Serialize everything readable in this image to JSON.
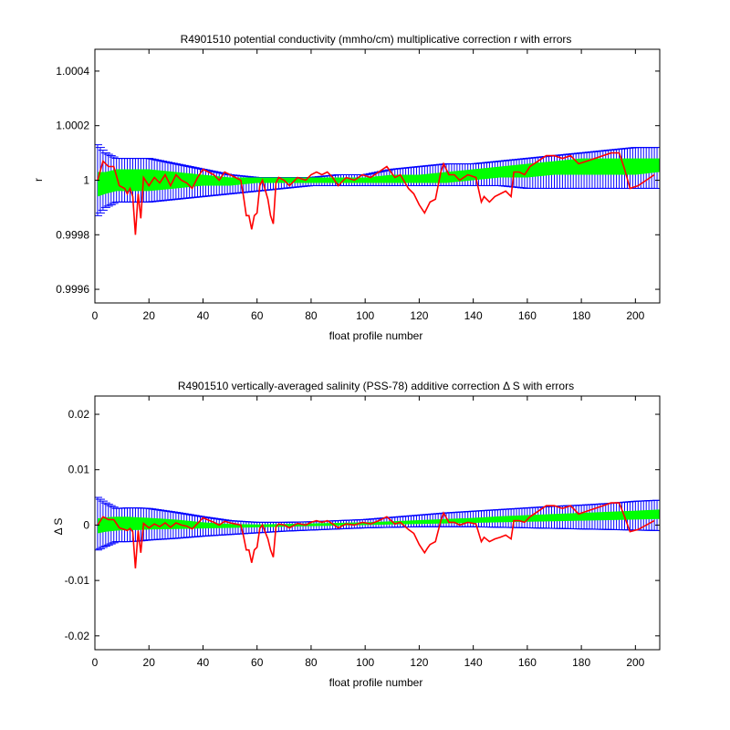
{
  "colors": {
    "error_bars": "#0000ff",
    "fill_band": "#00ff00",
    "correction_line": "#ff0000",
    "axes": "#000000"
  },
  "chart_data": [
    {
      "type": "line",
      "title": "R4901510 potential conductivity (mmho/cm) multiplicative correction r with errors",
      "xlabel": "float profile number",
      "ylabel": "r",
      "xlim": [
        0,
        209
      ],
      "ylim": [
        0.99955,
        1.00048
      ],
      "xticks": [
        0,
        20,
        40,
        60,
        80,
        100,
        120,
        140,
        160,
        180,
        200
      ],
      "yticks": [
        0.9996,
        0.9998,
        1,
        1.0002,
        1.0004
      ],
      "ytick_labels": [
        "0.9996",
        "0.9998",
        "1",
        "1.0002",
        "1.0004"
      ],
      "grid": false,
      "band": {
        "x": [
          1,
          4,
          8,
          12,
          16,
          20,
          30,
          40,
          50,
          60,
          70,
          80,
          90,
          100,
          110,
          120,
          130,
          140,
          150,
          160,
          170,
          180,
          190,
          200,
          209
        ],
        "upper": [
          1.00013,
          1.0001,
          1.00008,
          1.00008,
          1.00008,
          1.00008,
          1.00006,
          1.00004,
          1.00002,
          1.00001,
          1.00001,
          1.00001,
          1.00002,
          1.00002,
          1.00004,
          1.00005,
          1.00006,
          1.00006,
          1.00007,
          1.00008,
          1.00009,
          1.0001,
          1.00011,
          1.00012,
          1.00012
        ],
        "lower": [
          0.99987,
          0.9999,
          0.99992,
          0.99992,
          0.99992,
          0.99992,
          0.99993,
          0.99994,
          0.99995,
          0.99996,
          0.99997,
          0.99998,
          0.99998,
          0.99998,
          0.99998,
          0.99998,
          0.99998,
          0.99998,
          0.99998,
          0.99997,
          0.99997,
          0.99997,
          0.99997,
          0.99997,
          0.99997
        ],
        "inner_upper": [
          1.00003,
          1.00003,
          1.00004,
          1.00004,
          1.00004,
          1.00004,
          1.00003,
          1.00002,
          1.00001,
          1.00001,
          1.00001,
          1.00001,
          1.00001,
          1.00001,
          1.00002,
          1.00002,
          1.00003,
          1.00004,
          1.00005,
          1.00006,
          1.00007,
          1.00008,
          1.00008,
          1.00008,
          1.00008
        ],
        "inner_lower": [
          0.99994,
          0.99995,
          0.99996,
          0.99996,
          0.99996,
          0.99996,
          0.99997,
          0.99998,
          0.99998,
          0.99999,
          0.99999,
          0.99999,
          0.99999,
          0.99999,
          0.99999,
          0.99999,
          0.99999,
          1,
          1.00001,
          1.00001,
          1.00002,
          1.00002,
          1.00002,
          1.00002,
          1.00003
        ]
      },
      "series": [
        {
          "x": [
            1,
            3,
            5,
            7,
            9,
            11,
            12,
            13,
            14,
            15,
            16,
            17,
            18,
            20,
            22,
            24,
            26,
            28,
            30,
            32,
            34,
            36,
            38,
            40,
            42,
            44,
            46,
            48,
            50,
            52,
            54,
            55,
            56,
            57,
            58,
            59,
            60,
            61,
            62,
            64,
            65,
            66,
            67,
            68,
            70,
            72,
            75,
            78,
            80,
            82,
            84,
            86,
            88,
            90,
            93,
            96,
            99,
            102,
            105,
            108,
            111,
            113,
            116,
            118,
            120,
            122,
            123,
            124,
            126,
            128,
            129,
            131,
            133,
            135,
            138,
            141,
            143,
            144,
            146,
            148,
            150,
            152,
            154,
            155,
            157,
            159,
            161,
            164,
            167,
            170,
            173,
            176,
            179,
            182,
            185,
            188,
            191,
            194,
            196,
            198,
            201,
            204,
            207
          ],
          "y": [
            1.0,
            1.00007,
            1.00005,
            1.00005,
            0.99998,
            0.99997,
            0.99995,
            0.99997,
            0.99994,
            0.9998,
            0.99995,
            0.99986,
            1.00001,
            0.99998,
            1.00001,
            0.99999,
            1.00002,
            0.99998,
            1.00002,
            1.0,
            0.99999,
            0.99997,
            1.00001,
            1.00004,
            1.00003,
            1.00002,
            1.0,
            1.00003,
            1.00002,
            1.00001,
            1.0,
            0.99994,
            0.99987,
            0.99987,
            0.99982,
            0.99987,
            0.99988,
            0.99998,
            1.0,
            0.99993,
            0.99987,
            0.99984,
            0.99999,
            1.00001,
            1.0,
            0.99998,
            1.00001,
            1.0,
            1.00002,
            1.00003,
            1.00002,
            1.00003,
            1.00001,
            0.99998,
            1.00001,
            1.0,
            1.00002,
            1.00001,
            1.00003,
            1.00005,
            1.00001,
            1.00002,
            0.99997,
            0.99995,
            0.99991,
            0.99988,
            0.9999,
            0.99992,
            0.99993,
            1.00003,
            1.00006,
            1.00002,
            1.00002,
            1.0,
            1.00002,
            1.00001,
            0.99992,
            0.99994,
            0.99992,
            0.99994,
            0.99995,
            0.99996,
            0.99994,
            1.00003,
            1.00003,
            1.00002,
            1.00005,
            1.00007,
            1.00009,
            1.00009,
            1.00008,
            1.00009,
            1.00006,
            1.00007,
            1.00008,
            1.00009,
            1.0001,
            1.0001,
            1.00004,
            0.99997,
            0.99998,
            1.0,
            1.00002
          ]
        }
      ]
    },
    {
      "type": "line",
      "title": "R4901510 vertically-averaged salinity (PSS-78) additive correction Δ S with errors",
      "xlabel": "float profile number",
      "ylabel": "Δ S",
      "xlim": [
        0,
        209
      ],
      "ylim": [
        -0.0225,
        0.0233
      ],
      "xticks": [
        0,
        20,
        40,
        60,
        80,
        100,
        120,
        140,
        160,
        180,
        200
      ],
      "yticks": [
        -0.02,
        -0.01,
        0,
        0.01,
        0.02
      ],
      "ytick_labels": [
        "-0.02",
        "-0.01",
        "0",
        "0.01",
        "0.02"
      ],
      "grid": false,
      "band": {
        "x": [
          1,
          4,
          8,
          12,
          16,
          20,
          30,
          40,
          50,
          60,
          70,
          80,
          90,
          100,
          110,
          120,
          130,
          140,
          150,
          160,
          170,
          180,
          190,
          200,
          209
        ],
        "upper": [
          0.005,
          0.004,
          0.003,
          0.0031,
          0.0031,
          0.003,
          0.0023,
          0.0015,
          0.0008,
          0.0005,
          0.0005,
          0.0006,
          0.0008,
          0.001,
          0.0014,
          0.0018,
          0.0022,
          0.0025,
          0.0028,
          0.0031,
          0.0034,
          0.0036,
          0.0039,
          0.0043,
          0.0045
        ],
        "lower": [
          -0.0045,
          -0.0038,
          -0.003,
          -0.003,
          -0.0029,
          -0.0027,
          -0.0024,
          -0.002,
          -0.0017,
          -0.0014,
          -0.0011,
          -0.0009,
          -0.0007,
          -0.0005,
          -0.0004,
          -0.0003,
          -0.0003,
          -0.0003,
          -0.0004,
          -0.0005,
          -0.0006,
          -0.0007,
          -0.0008,
          -0.0009,
          -0.001
        ],
        "inner_upper": [
          0.0012,
          0.0014,
          0.0015,
          0.0015,
          0.0014,
          0.0013,
          0.001,
          0.0005,
          0.0002,
          0.0001,
          0.0002,
          0.0003,
          0.0004,
          0.0005,
          0.0007,
          0.0009,
          0.0011,
          0.0013,
          0.0016,
          0.0018,
          0.002,
          0.0022,
          0.0024,
          0.0026,
          0.0028
        ],
        "inner_lower": [
          -0.0015,
          -0.0012,
          -0.001,
          -0.0009,
          -0.0009,
          -0.0008,
          -0.0007,
          -0.0006,
          -0.0005,
          -0.0004,
          -0.0003,
          -0.0002,
          -0.0001,
          0.0,
          0.0001,
          0.0002,
          0.0003,
          0.0004,
          0.0005,
          0.0006,
          0.0007,
          0.0008,
          0.0009,
          0.001,
          0.0011
        ]
      },
      "series": [
        {
          "x": [
            1,
            3,
            5,
            7,
            9,
            11,
            12,
            13,
            14,
            15,
            16,
            17,
            18,
            20,
            22,
            24,
            26,
            28,
            30,
            32,
            34,
            36,
            38,
            40,
            42,
            44,
            46,
            48,
            50,
            52,
            54,
            55,
            56,
            57,
            58,
            59,
            60,
            61,
            62,
            64,
            65,
            66,
            67,
            68,
            70,
            72,
            75,
            78,
            80,
            82,
            84,
            86,
            88,
            90,
            93,
            96,
            99,
            102,
            105,
            108,
            111,
            113,
            116,
            118,
            120,
            122,
            123,
            124,
            126,
            128,
            129,
            131,
            133,
            135,
            138,
            141,
            143,
            144,
            146,
            148,
            150,
            152,
            154,
            155,
            157,
            159,
            161,
            164,
            167,
            170,
            173,
            176,
            179,
            182,
            185,
            188,
            191,
            194,
            196,
            198,
            201,
            204,
            207
          ],
          "y": [
            0.0,
            0.0015,
            0.001,
            0.001,
            -0.0005,
            -0.0008,
            -0.001,
            -0.0006,
            -0.0012,
            -0.0078,
            -0.001,
            -0.005,
            0.0003,
            -0.0005,
            0.0002,
            -0.0003,
            0.0004,
            -0.0004,
            0.0004,
            0.0,
            -0.0002,
            -0.0007,
            0.0003,
            0.0013,
            0.0009,
            0.0005,
            0.0,
            0.0007,
            0.0004,
            0.0002,
            0.0,
            -0.002,
            -0.0045,
            -0.0045,
            -0.0068,
            -0.0045,
            -0.004,
            -0.0006,
            0.0,
            -0.0025,
            -0.0045,
            -0.0058,
            -0.0003,
            0.0002,
            0.0,
            -0.0005,
            0.0003,
            0.0,
            0.0005,
            0.0008,
            0.0005,
            0.0008,
            0.0002,
            -0.0005,
            0.0002,
            0.0,
            0.0005,
            0.0002,
            0.0008,
            0.0015,
            0.0002,
            0.0005,
            -0.0008,
            -0.0015,
            -0.0035,
            -0.005,
            -0.0042,
            -0.0035,
            -0.003,
            0.0008,
            0.0022,
            0.0005,
            0.0005,
            0.0,
            0.0005,
            0.0002,
            -0.003,
            -0.0022,
            -0.003,
            -0.0025,
            -0.0022,
            -0.0018,
            -0.0025,
            0.0008,
            0.0008,
            0.0005,
            0.0015,
            0.0025,
            0.0035,
            0.0035,
            0.003,
            0.0035,
            0.002,
            0.0025,
            0.003,
            0.0035,
            0.004,
            0.004,
            0.0015,
            -0.0012,
            -0.0008,
            0.0,
            0.0008
          ]
        }
      ]
    }
  ]
}
